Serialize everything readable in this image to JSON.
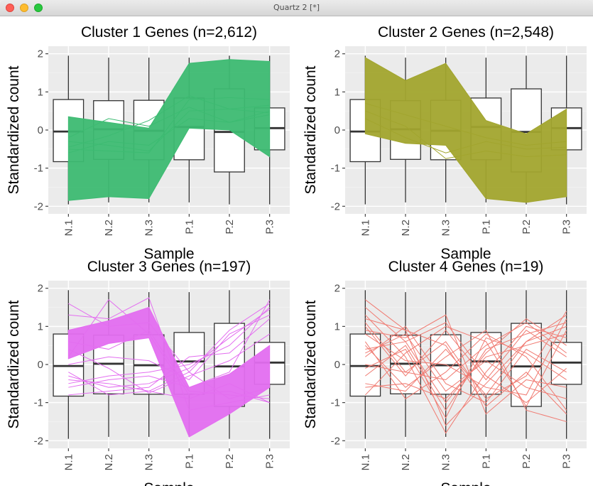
{
  "window": {
    "title": "Quartz 2 [*]"
  },
  "chart_data": [
    {
      "type": "line",
      "title": "Cluster 1 Genes (n=2,612)",
      "xlabel": "Sample",
      "ylabel": "Standardized count",
      "categories": [
        "N.1",
        "N.2",
        "N.3",
        "P.1",
        "P.2",
        "P.3"
      ],
      "ylim": [
        -2.2,
        2.2
      ],
      "yticks": [
        -2,
        -1,
        0,
        1,
        2
      ],
      "grid": true,
      "color": "#3dbb72",
      "boxes": [
        {
          "q1": -0.83,
          "median": -0.04,
          "q3": 0.8,
          "wlo": -1.95,
          "whi": 1.95
        },
        {
          "q1": -0.77,
          "median": 0.02,
          "q3": 0.77,
          "wlo": -1.9,
          "whi": 1.9
        },
        {
          "q1": -0.78,
          "median": -0.02,
          "q3": 0.78,
          "wlo": -1.9,
          "whi": 1.9
        },
        {
          "q1": -0.78,
          "median": 0.08,
          "q3": 0.84,
          "wlo": -1.9,
          "whi": 1.9
        },
        {
          "q1": -1.1,
          "median": -0.05,
          "q3": 1.08,
          "wlo": -1.95,
          "whi": 1.95
        },
        {
          "q1": -0.52,
          "median": 0.05,
          "q3": 0.58,
          "wlo": -1.95,
          "whi": 1.95
        }
      ],
      "band": {
        "lower": [
          -1.85,
          -1.75,
          -1.8,
          0.05,
          0.0,
          -0.7
        ],
        "upper": [
          0.35,
          0.2,
          0.05,
          1.75,
          1.85,
          1.8
        ]
      },
      "lines": [
        [
          -0.5,
          -0.55,
          -0.6,
          0.8,
          0.85,
          0.8
        ],
        [
          -0.3,
          -0.4,
          -0.55,
          0.5,
          0.55,
          0.45
        ],
        [
          -0.45,
          -0.15,
          0.25,
          0.9,
          0.55,
          0.65
        ],
        [
          -0.2,
          0.3,
          0.1,
          0.6,
          0.2,
          0.5
        ],
        [
          -0.6,
          -0.3,
          -0.4,
          0.3,
          0.2,
          0.4
        ]
      ]
    },
    {
      "type": "line",
      "title": "Cluster 2 Genes (n=2,548)",
      "xlabel": "Sample",
      "ylabel": "Standardized count",
      "categories": [
        "N.1",
        "N.2",
        "N.3",
        "P.1",
        "P.2",
        "P.3"
      ],
      "ylim": [
        -2.2,
        2.2
      ],
      "yticks": [
        -2,
        -1,
        0,
        1,
        2
      ],
      "grid": true,
      "color": "#a2a52e",
      "boxes": [
        {
          "q1": -0.83,
          "median": -0.04,
          "q3": 0.8,
          "wlo": -1.95,
          "whi": 1.95
        },
        {
          "q1": -0.77,
          "median": 0.02,
          "q3": 0.77,
          "wlo": -1.9,
          "whi": 1.9
        },
        {
          "q1": -0.78,
          "median": -0.02,
          "q3": 0.78,
          "wlo": -1.9,
          "whi": 1.9
        },
        {
          "q1": -0.78,
          "median": 0.08,
          "q3": 0.84,
          "wlo": -1.9,
          "whi": 1.9
        },
        {
          "q1": -1.1,
          "median": -0.05,
          "q3": 1.08,
          "wlo": -1.95,
          "whi": 1.95
        },
        {
          "q1": -0.52,
          "median": 0.05,
          "q3": 0.58,
          "wlo": -1.95,
          "whi": 1.95
        }
      ],
      "band": {
        "lower": [
          -0.1,
          -0.35,
          -0.4,
          -1.8,
          -1.9,
          -1.75
        ],
        "upper": [
          1.9,
          1.3,
          1.75,
          0.25,
          -0.1,
          0.55
        ]
      },
      "lines": [
        [
          0.5,
          0.1,
          -0.75,
          -0.55,
          -0.7,
          -0.65
        ],
        [
          0.3,
          -0.2,
          -0.6,
          -0.3,
          -0.5,
          -0.45
        ],
        [
          0.7,
          0.4,
          0.1,
          -0.2,
          -0.4,
          -0.3
        ]
      ]
    },
    {
      "type": "line",
      "title": "Cluster 3 Genes (n=197)",
      "xlabel": "Sample",
      "ylabel": "Standardized count",
      "categories": [
        "N.1",
        "N.2",
        "N.3",
        "P.1",
        "P.2",
        "P.3"
      ],
      "ylim": [
        -2.2,
        2.2
      ],
      "yticks": [
        -2,
        -1,
        0,
        1,
        2
      ],
      "grid": true,
      "color": "#e36ef0",
      "boxes": [
        {
          "q1": -0.83,
          "median": -0.04,
          "q3": 0.8,
          "wlo": -1.95,
          "whi": 1.95
        },
        {
          "q1": -0.77,
          "median": 0.02,
          "q3": 0.77,
          "wlo": -1.9,
          "whi": 1.9
        },
        {
          "q1": -0.78,
          "median": -0.02,
          "q3": 0.78,
          "wlo": -1.9,
          "whi": 1.9
        },
        {
          "q1": -0.78,
          "median": 0.08,
          "q3": 0.84,
          "wlo": -1.9,
          "whi": 1.9
        },
        {
          "q1": -1.1,
          "median": -0.05,
          "q3": 1.08,
          "wlo": -1.95,
          "whi": 1.95
        },
        {
          "q1": -0.52,
          "median": 0.05,
          "q3": 0.58,
          "wlo": -1.95,
          "whi": 1.95
        }
      ],
      "band": {
        "lower": [
          0.15,
          0.55,
          0.7,
          -1.9,
          -1.3,
          -0.6
        ],
        "upper": [
          0.9,
          1.15,
          1.5,
          -0.6,
          -0.25,
          0.5
        ]
      },
      "lines": [
        [
          -0.4,
          -0.5,
          -0.7,
          -0.2,
          0.9,
          1.6
        ],
        [
          -0.3,
          -0.6,
          -0.5,
          -0.1,
          0.7,
          1.45
        ],
        [
          1.6,
          1.0,
          1.1,
          -0.2,
          -0.9,
          -0.6
        ],
        [
          -0.5,
          -0.3,
          -0.2,
          0.0,
          0.5,
          1.5
        ],
        [
          0.2,
          1.7,
          0.8,
          -0.8,
          -0.7,
          -1.0
        ],
        [
          -0.8,
          -0.7,
          -0.6,
          0.2,
          0.3,
          1.2
        ],
        [
          0.4,
          -0.1,
          -0.75,
          -0.3,
          0.1,
          0.8
        ],
        [
          -0.6,
          -0.4,
          -0.3,
          -0.6,
          -0.2,
          1.7
        ],
        [
          0.0,
          0.2,
          0.1,
          -0.4,
          0.8,
          1.3
        ],
        [
          1.3,
          1.2,
          1.75,
          -1.2,
          -1.0,
          -0.8
        ],
        [
          -0.2,
          -0.8,
          -0.7,
          -0.9,
          -0.5,
          -1.0
        ],
        [
          0.6,
          0.4,
          0.9,
          -0.7,
          -0.8,
          -0.9
        ]
      ]
    },
    {
      "type": "line",
      "title": "Cluster 4 Genes (n=19)",
      "xlabel": "Sample",
      "ylabel": "Standardized count",
      "categories": [
        "N.1",
        "N.2",
        "N.3",
        "P.1",
        "P.2",
        "P.3"
      ],
      "ylim": [
        -2.2,
        2.2
      ],
      "yticks": [
        -2,
        -1,
        0,
        1,
        2
      ],
      "grid": true,
      "color": "#f07b72",
      "boxes": [
        {
          "q1": -0.83,
          "median": -0.04,
          "q3": 0.8,
          "wlo": -1.95,
          "whi": 1.95
        },
        {
          "q1": -0.77,
          "median": 0.02,
          "q3": 0.77,
          "wlo": -1.9,
          "whi": 1.9
        },
        {
          "q1": -0.78,
          "median": -0.02,
          "q3": 0.78,
          "wlo": -1.9,
          "whi": 1.9
        },
        {
          "q1": -0.78,
          "median": 0.08,
          "q3": 0.84,
          "wlo": -1.9,
          "whi": 1.9
        },
        {
          "q1": -1.1,
          "median": -0.05,
          "q3": 1.08,
          "wlo": -1.95,
          "whi": 1.95
        },
        {
          "q1": -0.52,
          "median": 0.05,
          "q3": 0.58,
          "wlo": -1.95,
          "whi": 1.95
        }
      ],
      "band": null,
      "lines": [
        [
          1.7,
          0.9,
          -1.6,
          -0.5,
          0.6,
          1.3
        ],
        [
          1.3,
          0.2,
          -1.8,
          -0.2,
          1.0,
          0.7
        ],
        [
          0.9,
          0.7,
          1.3,
          -1.3,
          -0.4,
          -0.6
        ],
        [
          0.5,
          -0.6,
          0.2,
          0.9,
          -1.2,
          -1.5
        ],
        [
          -0.3,
          0.5,
          -1.2,
          0.4,
          0.8,
          1.1
        ],
        [
          1.1,
          -0.2,
          0.6,
          -0.9,
          -0.3,
          1.4
        ],
        [
          0.2,
          1.0,
          -0.5,
          -1.0,
          0.4,
          -0.2
        ],
        [
          -0.8,
          0.3,
          1.0,
          0.6,
          -1.1,
          0.9
        ],
        [
          0.6,
          -0.9,
          -0.2,
          0.8,
          0.2,
          -1.2
        ],
        [
          1.5,
          0.6,
          -1.0,
          0.3,
          1.2,
          0.5
        ],
        [
          -0.5,
          -0.7,
          0.4,
          -0.8,
          0.6,
          1.0
        ],
        [
          0.3,
          0.8,
          -0.7,
          0.1,
          -0.6,
          -0.9
        ],
        [
          1.0,
          -0.3,
          0.9,
          -0.4,
          0.9,
          0.2
        ],
        [
          -0.1,
          0.4,
          -1.4,
          0.7,
          0.3,
          -0.4
        ],
        [
          0.8,
          0.1,
          0.0,
          -0.6,
          -0.8,
          1.2
        ],
        [
          -0.6,
          -0.5,
          -0.9,
          0.2,
          0.5,
          0.8
        ],
        [
          1.2,
          0.9,
          0.5,
          -1.1,
          -0.2,
          -1.3
        ],
        [
          0.0,
          -0.2,
          -0.4,
          0.5,
          1.1,
          0.3
        ],
        [
          0.4,
          0.6,
          1.1,
          -0.3,
          -1.0,
          -0.1
        ]
      ]
    }
  ]
}
